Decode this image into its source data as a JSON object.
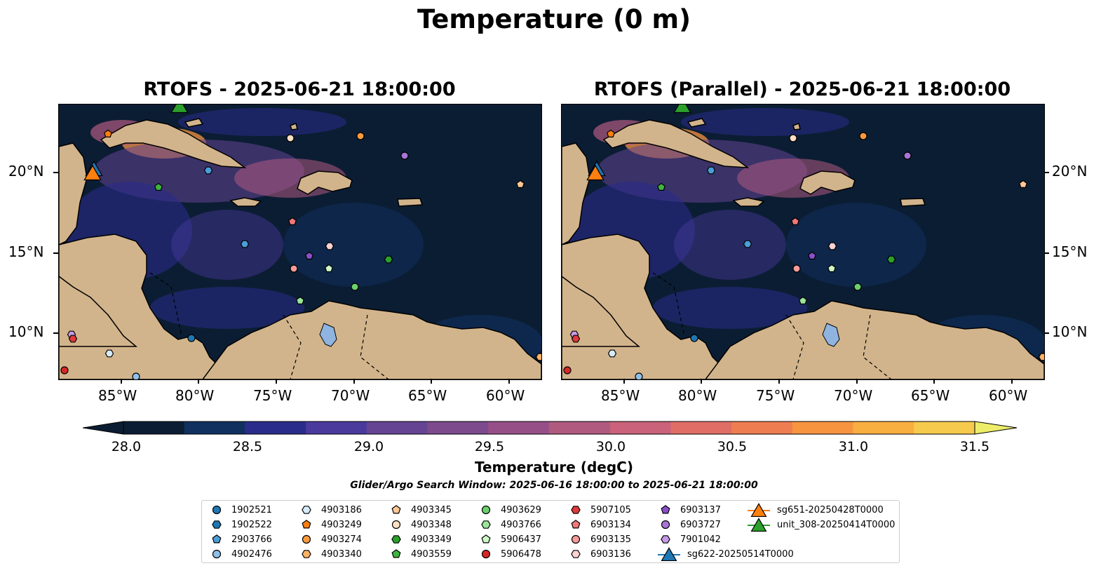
{
  "figure": {
    "title": "Temperature (0 m)",
    "panels": [
      {
        "title": "RTOFS - 2025-06-21 18:00:00"
      },
      {
        "title": "RTOFS (Parallel) - 2025-06-21 18:00:00"
      }
    ],
    "lon_labels": [
      "85°W",
      "80°W",
      "75°W",
      "70°W",
      "65°W",
      "60°W"
    ],
    "lat_labels": [
      "20°N",
      "15°N",
      "10°N"
    ],
    "colorbar": {
      "title": "Temperature (degC)",
      "tick_labels": [
        "28.0",
        "28.5",
        "29.0",
        "29.5",
        "30.0",
        "30.5",
        "31.0",
        "31.5"
      ],
      "colormap": [
        "#0b1d33",
        "#10305f",
        "#2a2c8b",
        "#4a3a9c",
        "#654494",
        "#7d4a8e",
        "#974f88",
        "#b15a80",
        "#c9627a",
        "#e06e66",
        "#ef7d52",
        "#f69440",
        "#f9ae40",
        "#f6cb4d",
        "#eded6a"
      ]
    },
    "search_window": "Glider/Argo Search Window: 2025-06-16 18:00:00 to 2025-06-21 18:00:00",
    "legend": [
      {
        "label": "1902521",
        "marker": "circle",
        "color": "#1f77b4"
      },
      {
        "label": "1902522",
        "marker": "hexagon",
        "color": "#1f77b4"
      },
      {
        "label": "2903766",
        "marker": "pentagon",
        "color": "#4a9ed8"
      },
      {
        "label": "4902476",
        "marker": "circle",
        "color": "#8fc0e8"
      },
      {
        "label": "4903186",
        "marker": "hexagon",
        "color": "#d6ecfa"
      },
      {
        "label": "4903249",
        "marker": "pentagon",
        "color": "#ff7f0e"
      },
      {
        "label": "4903274",
        "marker": "circle",
        "color": "#ff9a3c"
      },
      {
        "label": "4903340",
        "marker": "hexagon",
        "color": "#ffb264"
      },
      {
        "label": "4903345",
        "marker": "pentagon",
        "color": "#ffc896"
      },
      {
        "label": "4903348",
        "marker": "circle",
        "color": "#ffe0c4"
      },
      {
        "label": "4903349",
        "marker": "hexagon",
        "color": "#2ca02c"
      },
      {
        "label": "4903559",
        "marker": "pentagon",
        "color": "#3fb43f"
      },
      {
        "label": "4903629",
        "marker": "circle",
        "color": "#6cd06c"
      },
      {
        "label": "4903766",
        "marker": "hexagon",
        "color": "#9be59b"
      },
      {
        "label": "5906437",
        "marker": "pentagon",
        "color": "#cff7c8"
      },
      {
        "label": "5906478",
        "marker": "circle",
        "color": "#d62728"
      },
      {
        "label": "5907105",
        "marker": "hexagon",
        "color": "#e0393a"
      },
      {
        "label": "6903134",
        "marker": "pentagon",
        "color": "#f27777"
      },
      {
        "label": "6903135",
        "marker": "circle",
        "color": "#f79b9b"
      },
      {
        "label": "6903136",
        "marker": "hexagon",
        "color": "#fcd2d2"
      },
      {
        "label": "6903137",
        "marker": "pentagon",
        "color": "#8a4fc7"
      },
      {
        "label": "6903727",
        "marker": "circle",
        "color": "#a875d6"
      },
      {
        "label": "7901042",
        "marker": "hexagon",
        "color": "#c69ae6"
      },
      {
        "label": "sg622-20250514T0000",
        "marker": "triangle",
        "color": "#1f77b4"
      },
      {
        "label": "sg651-20250428T0000",
        "marker": "triangle",
        "color": "#ff7f0e"
      },
      {
        "label": "unit_308-20250414T0000",
        "marker": "triangle",
        "color": "#2ca02c"
      }
    ],
    "land_color": "#d2b48c",
    "lake_color": "#8fb4e0"
  }
}
